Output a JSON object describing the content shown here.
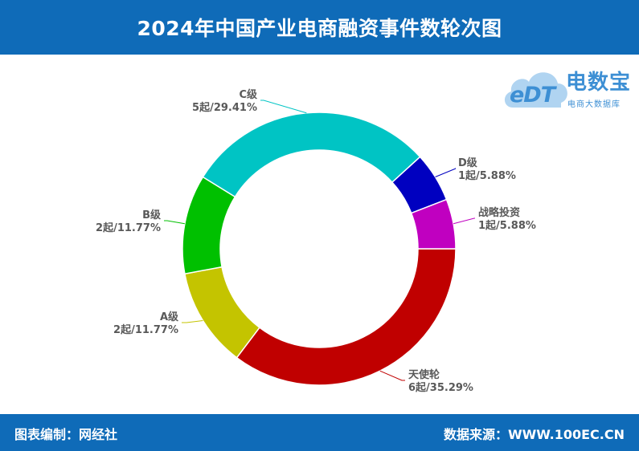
{
  "header": {
    "title": "2024年中国产业电商融资事件数轮次图"
  },
  "footer": {
    "left": "图表编制：网经社",
    "right": "数据来源：WWW.100EC.CN"
  },
  "logo": {
    "name": "电数宝",
    "sub": "电商大数据库",
    "edt": "eDT"
  },
  "chart_data": {
    "type": "pie",
    "donut": true,
    "title": "2024年中国产业电商融资事件数轮次图",
    "slices": [
      {
        "label": "天使轮",
        "count": 6,
        "value_label": "6起/35.29%",
        "percent": 35.29,
        "color": "#c00000"
      },
      {
        "label": "A级",
        "count": 2,
        "value_label": "2起/11.77%",
        "percent": 11.77,
        "color": "#c4c400"
      },
      {
        "label": "B级",
        "count": 2,
        "value_label": "2起/11.77%",
        "percent": 11.77,
        "color": "#00c000"
      },
      {
        "label": "C级",
        "count": 5,
        "value_label": "5起/29.41%",
        "percent": 29.41,
        "color": "#00c4c4"
      },
      {
        "label": "D级",
        "count": 1,
        "value_label": "1起/5.88%",
        "percent": 5.88,
        "color": "#0000c0"
      },
      {
        "label": "战略投资",
        "count": 1,
        "value_label": "1起/5.88%",
        "percent": 5.88,
        "color": "#c000c0"
      }
    ]
  }
}
